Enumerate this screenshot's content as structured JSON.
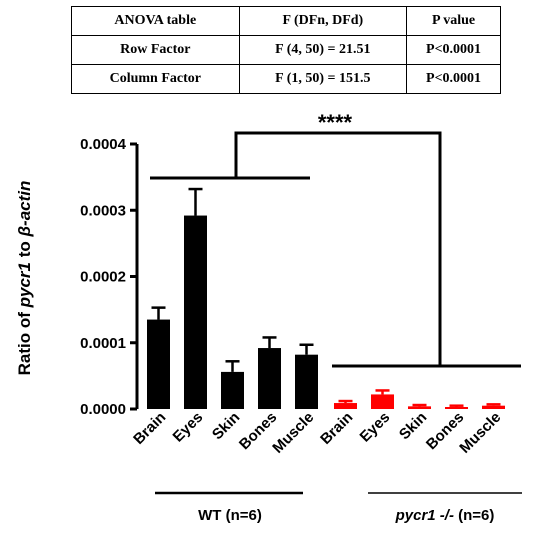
{
  "anova_table": {
    "headers": [
      "ANOVA table",
      "F (DFn, DFd)",
      "P value"
    ],
    "rows": [
      [
        "Row Factor",
        "F (4, 50) = 21.51",
        "P<0.0001"
      ],
      [
        "Column Factor",
        "F (1, 50) = 151.5",
        "P<0.0001"
      ]
    ]
  },
  "chart_data": {
    "type": "bar",
    "ylabel_parts": [
      "Ratio of ",
      "pycr1",
      " to ",
      "β-actin"
    ],
    "ylim": [
      0,
      0.0004
    ],
    "yticks": [
      "0.0000",
      "0.0001",
      "0.0002",
      "0.0003",
      "0.0004"
    ],
    "ytick_values": [
      0,
      0.0001,
      0.0002,
      0.0003,
      0.0004
    ],
    "significance": "****",
    "groups": [
      {
        "label": "WT (n=6)",
        "label_italic": "",
        "label_rest": "WT (n=6)",
        "color": "#000000",
        "categories": [
          "Brain",
          "Eyes",
          "Skin",
          "Bones",
          "Muscle"
        ],
        "values": [
          0.000135,
          0.000292,
          5.6e-05,
          9.2e-05,
          8.2e-05
        ],
        "errors": [
          1.8e-05,
          4e-05,
          1.6e-05,
          1.6e-05,
          1.5e-05
        ]
      },
      {
        "label": "pycr1 -/- (n=6)",
        "label_italic": "pycr1 -/-",
        "label_rest": " (n=6)",
        "color": "#ff0000",
        "categories": [
          "Brain",
          "Eyes",
          "Skin",
          "Bones",
          "Muscle"
        ],
        "values": [
          9e-06,
          2.2e-05,
          4e-06,
          3e-06,
          5e-06
        ],
        "errors": [
          3e-06,
          6e-06,
          2e-06,
          2e-06,
          2e-06
        ]
      }
    ]
  }
}
